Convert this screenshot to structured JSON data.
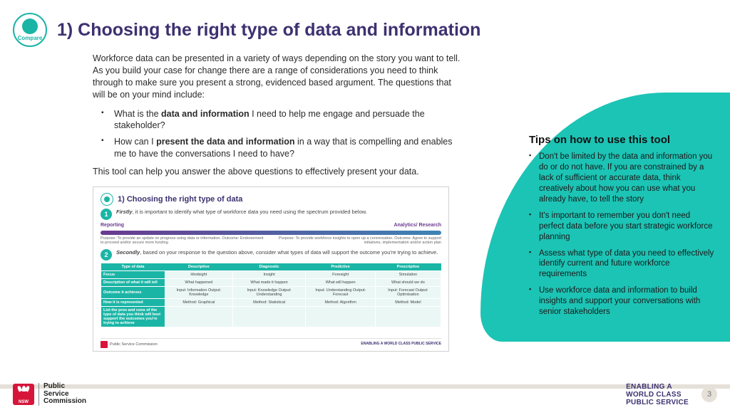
{
  "compare_label": "Compare",
  "title": "1) Choosing the right type of data and information",
  "intro": "Workforce data can be presented in a variety of ways depending on the story you want to tell. As you build your case for change there are a range of considerations you need to think through to make sure you present a strong, evidenced based argument. The questions that will be on your mind include:",
  "bullet1_a": "What is the ",
  "bullet1_b": "data and information",
  "bullet1_c": " I need to help me engage and persuade the stakeholder?",
  "bullet2_a": "How can I ",
  "bullet2_b": "present the data and information",
  "bullet2_c": " in a way that is compelling and enables me to have the conversations I need to have?",
  "closer": "This tool can help you answer the above questions to effectively present your data.",
  "thumb": {
    "title": "1) Choosing the right type of data",
    "step1_b": "Firstly",
    "step1_t": ", it is important to identify what type of workforce data you need using the spectrum provided below.",
    "spectrum_left": "Reporting",
    "spectrum_right": "Analytics/ Research",
    "spec_left_sub": "Purpose: To provide an update on progress using data or information. Outcome: Endorsement to proceed and/or secure more funding",
    "spec_right_sub": "Purpose: To provide workforce insights to open up a conversation. Outcome: Agree to support initiatives, implementation and/or action plan",
    "step2_b": "Secondly",
    "step2_t": ", based on your response to the question above, consider what types of data will support the outcome you're trying to achieve.",
    "headers": [
      "Type of data",
      "Descriptive",
      "Diagnostic",
      "Predictive",
      "Prescriptive"
    ],
    "rows": [
      [
        "Focus",
        "Hindsight",
        "Insight",
        "Foresight",
        "Simulation"
      ],
      [
        "Description of what it will tell",
        "What happened",
        "What made it happen",
        "What will happen",
        "What should we do"
      ],
      [
        "Outcome it achieves",
        "Input: Information Output: Knowledge",
        "Input: Knowledge Output: Understanding",
        "Input: Understanding Output: Forecast",
        "Input: Forecast Output: Optimisation"
      ],
      [
        "How it is represented",
        "Method: Graphical",
        "Method: Statistical",
        "Method: Algorithm",
        "Method: Model"
      ],
      [
        "List the pros and cons of the type of data you think will best support the outcomes you're trying to achieve",
        "",
        "",
        "",
        ""
      ]
    ],
    "footer_psc": "Public Service Commission",
    "footer_enab": "ENABLING A WORLD CLASS PUBLIC SERVICE"
  },
  "tips": {
    "heading": "Tips on how to use this tool",
    "items": [
      "Don't be limited by the data and information you do or do not have. If you are constrained by a lack of sufficient or accurate data, think creatively about how you can use what you already have, to tell the story",
      "It's important to remember you don't need perfect data before you start strategic workflow planning",
      "Assess what type of data you need to effectively identify current and future workforce requirements",
      "Use workforce data and information to build insights and support your conversations with senior stakeholders"
    ]
  },
  "footer": {
    "psc_l1": "Public",
    "psc_l2": "Service",
    "psc_l3": "Commission",
    "enabling_l1": "ENABLING A",
    "enabling_l2": "WORLD CLASS",
    "enabling_l3": "PUBLIC SERVICE",
    "page": "3"
  },
  "tips_item2_fix": "It's important to remember you don't need perfect data before you start strategic workforce planning"
}
